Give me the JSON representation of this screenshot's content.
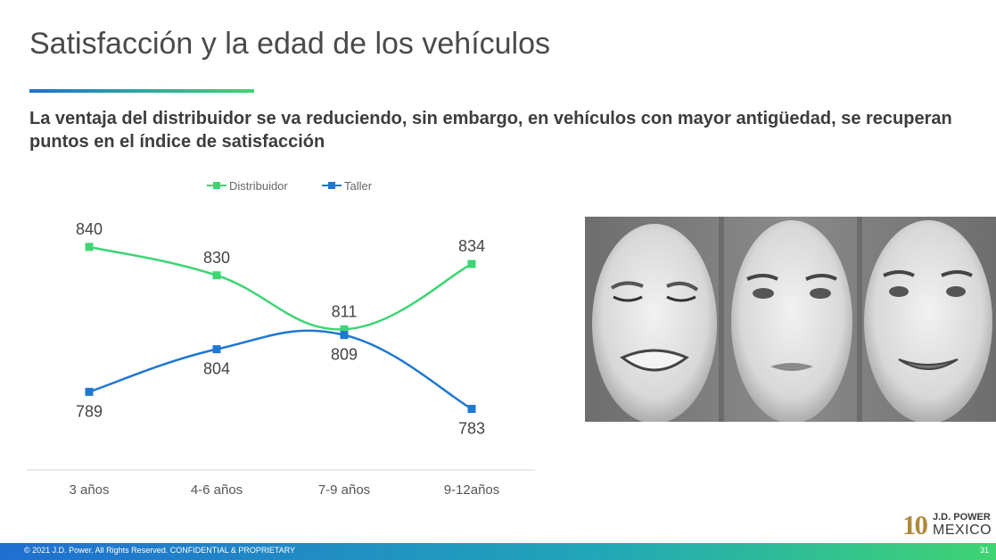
{
  "header": {
    "title": "Satisfacción y la edad de los vehículos",
    "subtitle": "La ventaja del distribuidor se va reduciendo, sin embargo, en vehículos con mayor antigüedad, se recuperan puntos en el índice de satisfacción"
  },
  "chart_data": {
    "type": "line",
    "categories": [
      "3 años",
      "4-6 años",
      "7-9 años",
      "9-12años"
    ],
    "series": [
      {
        "name": "Distribuidor",
        "values": [
          840,
          830,
          811,
          834
        ],
        "color": "#3dd674"
      },
      {
        "name": "Taller",
        "values": [
          789,
          804,
          809,
          783
        ],
        "color": "#1f78d1"
      }
    ],
    "legend_position": "top",
    "grid": false,
    "data_labels": true
  },
  "photo": {
    "icon": "three-faces-photo"
  },
  "footer": {
    "copyright": "© 2021 J.D. Power. All Rights Reserved. CONFIDENTIAL & PROPRIETARY",
    "page_number": "31"
  },
  "logo": {
    "number": "10",
    "brand": "J.D. POWER",
    "country": "MEXICO"
  }
}
